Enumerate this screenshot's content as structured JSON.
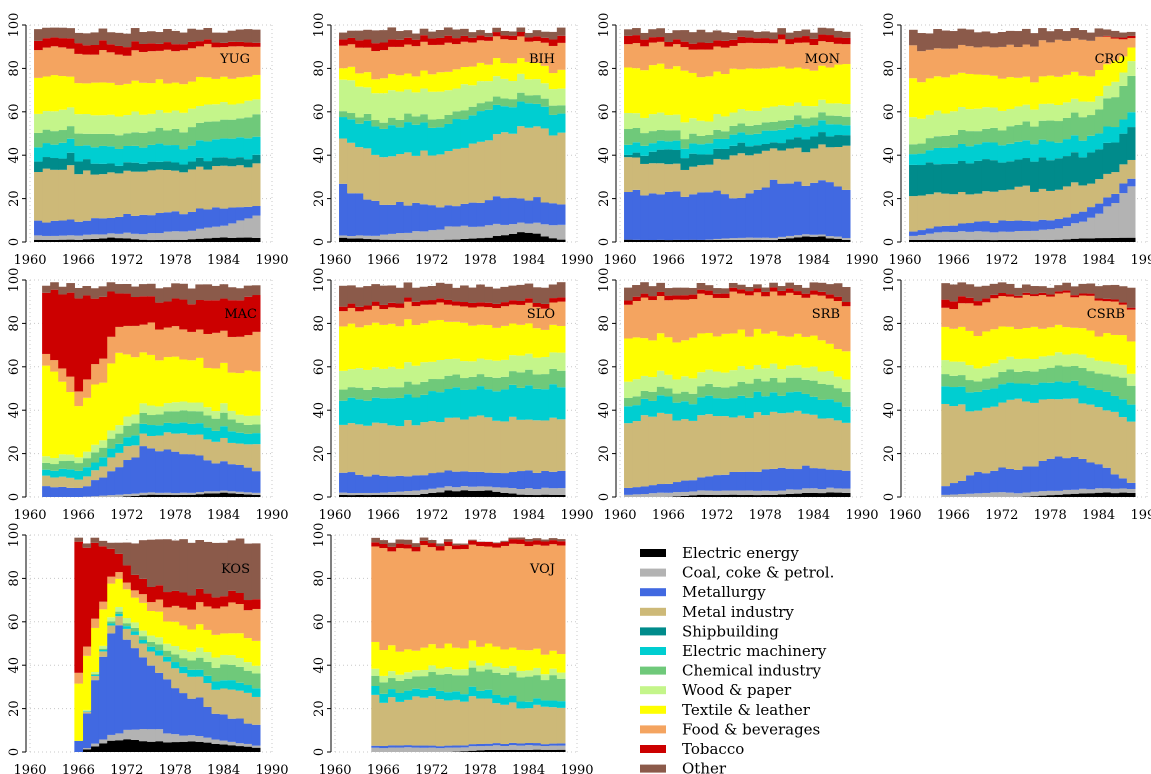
{
  "chart_data": {
    "type": "area",
    "stacked": true,
    "title": "",
    "xlabel": "",
    "ylabel": "",
    "xlim": [
      1960,
      1990
    ],
    "ylim": [
      0,
      100
    ],
    "x_ticks": [
      1960,
      1966,
      1972,
      1978,
      1984,
      1990
    ],
    "y_ticks": [
      0,
      20,
      40,
      60,
      80,
      100
    ],
    "grid": true,
    "legend_position": "bottom-right",
    "categories": [
      {
        "name": "Electric energy",
        "color": "#000000"
      },
      {
        "name": "Coal, coke & petrol.",
        "color": "#b3b3b3"
      },
      {
        "name": "Metallurgy",
        "color": "#4169e1"
      },
      {
        "name": "Metal industry",
        "color": "#cdb978"
      },
      {
        "name": "Shipbuilding",
        "color": "#008b8b"
      },
      {
        "name": "Electric machinery",
        "color": "#00ced1"
      },
      {
        "name": "Chemical industry",
        "color": "#6fc97a"
      },
      {
        "name": "Wood & paper",
        "color": "#c4f58a"
      },
      {
        "name": "Textile & leather",
        "color": "#ffff00"
      },
      {
        "name": "Food & beverages",
        "color": "#f4a460"
      },
      {
        "name": "Tobacco",
        "color": "#cc0000"
      },
      {
        "name": "Other",
        "color": "#8b5a4a"
      }
    ],
    "panels": [
      {
        "label": "YUG",
        "x_start": 1961,
        "x_end": 1988,
        "shares": [
          [
            1,
            1,
            2,
            1,
            1,
            2,
            2
          ],
          [
            2,
            2,
            2,
            3,
            4,
            5,
            10
          ],
          [
            7,
            7,
            8,
            9,
            9,
            9,
            5
          ],
          [
            24,
            23,
            21,
            20,
            20,
            20,
            19
          ],
          [
            5,
            6,
            4,
            4,
            4,
            4,
            4
          ],
          [
            7,
            7,
            8,
            8,
            8,
            9,
            9
          ],
          [
            6,
            6,
            6,
            7,
            8,
            9,
            10
          ],
          [
            9,
            9,
            9,
            9,
            9,
            8,
            7
          ],
          [
            17,
            15,
            16,
            15,
            13,
            12,
            12
          ],
          [
            13,
            14,
            14,
            14,
            15,
            15,
            14
          ],
          [
            4,
            5,
            4,
            4,
            3,
            2,
            2
          ],
          [
            5,
            5,
            6,
            6,
            6,
            5,
            6
          ]
        ]
      },
      {
        "label": "BIH",
        "x_start": 1961,
        "x_end": 1988,
        "shares": [
          [
            2,
            1,
            1,
            1,
            2,
            5,
            1
          ],
          [
            1,
            2,
            4,
            6,
            6,
            4,
            7
          ],
          [
            24,
            15,
            13,
            10,
            13,
            12,
            9
          ],
          [
            23,
            23,
            24,
            26,
            28,
            33,
            35
          ],
          [
            0,
            0,
            0,
            0,
            0,
            0,
            0
          ],
          [
            10,
            13,
            14,
            13,
            14,
            12,
            8
          ],
          [
            3,
            3,
            4,
            4,
            4,
            4,
            4
          ],
          [
            15,
            13,
            12,
            12,
            10,
            8,
            8
          ],
          [
            6,
            7,
            8,
            9,
            8,
            8,
            8
          ],
          [
            10,
            13,
            14,
            12,
            11,
            10,
            13
          ],
          [
            3,
            4,
            3,
            3,
            2,
            2,
            3
          ],
          [
            3,
            6,
            3,
            4,
            2,
            2,
            4
          ]
        ]
      },
      {
        "label": "MON",
        "x_start": 1961,
        "x_end": 1988,
        "shares": [
          [
            1,
            1,
            1,
            1,
            1,
            3,
            1
          ],
          [
            0,
            0,
            0,
            1,
            1,
            1,
            1
          ],
          [
            23,
            21,
            23,
            20,
            26,
            24,
            24
          ],
          [
            16,
            14,
            12,
            20,
            16,
            15,
            20
          ],
          [
            1,
            7,
            5,
            5,
            3,
            6,
            5
          ],
          [
            5,
            4,
            5,
            5,
            6,
            6,
            5
          ],
          [
            7,
            5,
            4,
            4,
            4,
            4,
            4
          ],
          [
            7,
            8,
            7,
            7,
            7,
            6,
            6
          ],
          [
            21,
            24,
            22,
            19,
            19,
            16,
            18
          ],
          [
            12,
            10,
            12,
            12,
            12,
            13,
            10
          ],
          [
            4,
            2,
            3,
            3,
            2,
            3,
            3
          ],
          [
            3,
            4,
            6,
            3,
            3,
            3,
            3
          ]
        ]
      },
      {
        "label": "CRO",
        "x_start": 1961,
        "x_end": 1988,
        "shares": [
          [
            1,
            1,
            1,
            1,
            1,
            2,
            2
          ],
          [
            2,
            4,
            4,
            4,
            5,
            10,
            24
          ],
          [
            2,
            3,
            5,
            5,
            4,
            5,
            4
          ],
          [
            17,
            14,
            15,
            15,
            15,
            12,
            9
          ],
          [
            15,
            14,
            15,
            13,
            14,
            14,
            15
          ],
          [
            5,
            8,
            8,
            9,
            8,
            8,
            7
          ],
          [
            5,
            6,
            7,
            8,
            10,
            11,
            17
          ],
          [
            12,
            11,
            10,
            8,
            8,
            6,
            7
          ],
          [
            17,
            17,
            15,
            14,
            13,
            12,
            7
          ],
          [
            16,
            13,
            13,
            16,
            17,
            16,
            5
          ],
          [
            0,
            0,
            0,
            0,
            0,
            0,
            1
          ],
          [
            8,
            9,
            7,
            7,
            5,
            4,
            2
          ]
        ]
      },
      {
        "label": "MAC",
        "x_start": 1962,
        "x_end": 1988,
        "shares": [
          [
            0,
            0,
            0,
            1,
            1,
            2,
            1
          ],
          [
            0,
            0,
            1,
            1,
            1,
            1,
            1
          ],
          [
            5,
            4,
            12,
            22,
            18,
            14,
            11
          ],
          [
            5,
            4,
            6,
            6,
            10,
            10,
            12
          ],
          [
            0,
            0,
            0,
            0,
            0,
            0,
            0
          ],
          [
            3,
            4,
            4,
            5,
            5,
            5,
            5
          ],
          [
            3,
            4,
            5,
            5,
            6,
            6,
            4
          ],
          [
            3,
            3,
            4,
            4,
            4,
            4,
            4
          ],
          [
            43,
            23,
            32,
            23,
            20,
            19,
            20
          ],
          [
            5,
            8,
            12,
            14,
            14,
            16,
            18
          ],
          [
            30,
            45,
            15,
            11,
            14,
            16,
            19
          ],
          [
            3,
            5,
            4,
            6,
            7,
            7,
            5
          ]
        ]
      },
      {
        "label": "SLO",
        "x_start": 1961,
        "x_end": 1988,
        "shares": [
          [
            1,
            1,
            1,
            3,
            3,
            1,
            1
          ],
          [
            1,
            1,
            2,
            2,
            2,
            3,
            3
          ],
          [
            10,
            8,
            7,
            7,
            7,
            8,
            8
          ],
          [
            24,
            24,
            25,
            25,
            25,
            24,
            25
          ],
          [
            0,
            0,
            0,
            0,
            0,
            0,
            0
          ],
          [
            12,
            12,
            13,
            14,
            14,
            15,
            15
          ],
          [
            5,
            5,
            6,
            6,
            6,
            7,
            8
          ],
          [
            9,
            9,
            9,
            8,
            8,
            8,
            8
          ],
          [
            20,
            21,
            20,
            18,
            16,
            15,
            12
          ],
          [
            7,
            8,
            8,
            8,
            9,
            10,
            11
          ],
          [
            2,
            2,
            2,
            2,
            2,
            2,
            2
          ],
          [
            9,
            9,
            7,
            7,
            8,
            7,
            7
          ]
        ]
      },
      {
        "label": "SRB",
        "x_start": 1961,
        "x_end": 1988,
        "shares": [
          [
            0,
            0,
            1,
            1,
            1,
            2,
            2
          ],
          [
            1,
            2,
            2,
            2,
            2,
            2,
            2
          ],
          [
            3,
            4,
            6,
            9,
            10,
            10,
            8
          ],
          [
            31,
            32,
            30,
            27,
            27,
            25,
            22
          ],
          [
            0,
            0,
            0,
            0,
            0,
            0,
            0
          ],
          [
            8,
            8,
            8,
            9,
            9,
            9,
            8
          ],
          [
            4,
            4,
            5,
            6,
            7,
            7,
            7
          ],
          [
            8,
            7,
            7,
            7,
            6,
            6,
            6
          ],
          [
            20,
            18,
            18,
            17,
            15,
            14,
            13
          ],
          [
            17,
            19,
            18,
            18,
            19,
            20,
            23
          ],
          [
            2,
            2,
            2,
            2,
            2,
            2,
            2
          ],
          [
            6,
            4,
            3,
            2,
            2,
            3,
            7
          ]
        ]
      },
      {
        "label": "CSRB",
        "x_start": 1965,
        "x_end": 1988,
        "shares": [
          [
            0,
            0,
            0,
            1,
            2,
            2
          ],
          [
            1,
            2,
            2,
            2,
            2,
            2
          ],
          [
            4,
            10,
            11,
            16,
            13,
            3
          ],
          [
            36,
            30,
            32,
            28,
            27,
            29
          ],
          [
            0,
            0,
            0,
            0,
            0,
            0
          ],
          [
            9,
            8,
            8,
            8,
            8,
            8
          ],
          [
            6,
            5,
            6,
            7,
            8,
            10
          ],
          [
            7,
            6,
            6,
            6,
            6,
            6
          ],
          [
            16,
            16,
            15,
            13,
            12,
            15
          ],
          [
            9,
            15,
            15,
            15,
            16,
            15
          ],
          [
            4,
            2,
            1,
            1,
            1,
            1
          ],
          [
            8,
            6,
            4,
            3,
            5,
            9
          ]
        ]
      },
      {
        "label": "KOS",
        "x_start": 1966,
        "x_end": 1988,
        "shares": [
          [
            0,
            6,
            5,
            5,
            4,
            2
          ],
          [
            0,
            3,
            6,
            3,
            2,
            1
          ],
          [
            5,
            54,
            30,
            20,
            12,
            10
          ],
          [
            0,
            4,
            7,
            9,
            13,
            14
          ],
          [
            0,
            0,
            0,
            0,
            0,
            0
          ],
          [
            0,
            1,
            2,
            3,
            4,
            4
          ],
          [
            0,
            1,
            2,
            4,
            7,
            7
          ],
          [
            0,
            2,
            3,
            4,
            5,
            4
          ],
          [
            28,
            14,
            12,
            11,
            10,
            12
          ],
          [
            5,
            3,
            4,
            9,
            13,
            15
          ],
          [
            60,
            9,
            7,
            7,
            5,
            5
          ],
          [
            2,
            3,
            22,
            25,
            25,
            26
          ]
        ]
      },
      {
        "label": "VOJ",
        "x_start": 1965,
        "x_end": 1988,
        "shares": [
          [
            0,
            0,
            0,
            1,
            1,
            1
          ],
          [
            2,
            2,
            2,
            2,
            2,
            2
          ],
          [
            1,
            1,
            1,
            1,
            1,
            1
          ],
          [
            22,
            22,
            22,
            20,
            17,
            17
          ],
          [
            0,
            0,
            0,
            0,
            0,
            0
          ],
          [
            4,
            4,
            4,
            4,
            3,
            3
          ],
          [
            5,
            6,
            8,
            10,
            11,
            11
          ],
          [
            3,
            3,
            3,
            3,
            3,
            3
          ],
          [
            12,
            10,
            10,
            9,
            9,
            9
          ],
          [
            47,
            48,
            47,
            48,
            50,
            50
          ],
          [
            2,
            2,
            2,
            2,
            2,
            2
          ],
          [
            2,
            2,
            1,
            0,
            1,
            1
          ]
        ]
      }
    ]
  }
}
